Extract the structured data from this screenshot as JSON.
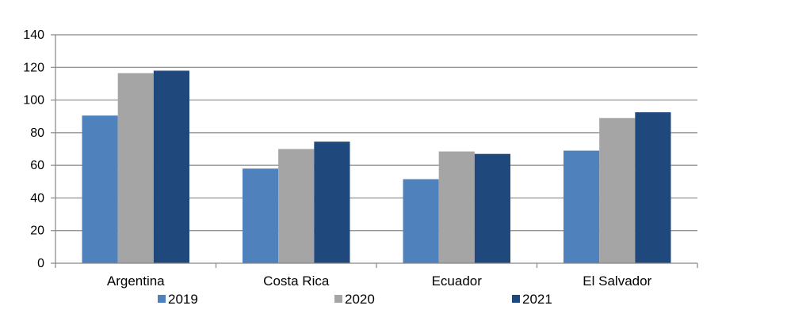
{
  "chart_data": {
    "type": "bar",
    "title": "",
    "xlabel": "",
    "ylabel": "",
    "categories": [
      "Argentina",
      "Costa Rica",
      "Ecuador",
      "El Salvador"
    ],
    "series": [
      {
        "name": "2019",
        "color": "#4f81bd",
        "values": [
          90.5,
          58,
          51.5,
          69
        ]
      },
      {
        "name": "2020",
        "color": "#a5a5a5",
        "values": [
          116.5,
          70,
          68.5,
          89
        ]
      },
      {
        "name": "2021",
        "color": "#1f497d",
        "values": [
          118,
          74.5,
          67,
          92.5
        ]
      }
    ],
    "ylim": [
      0,
      140
    ],
    "yticks": [
      0,
      20,
      40,
      60,
      80,
      100,
      120,
      140
    ],
    "grid": true,
    "legend_position": "bottom"
  }
}
